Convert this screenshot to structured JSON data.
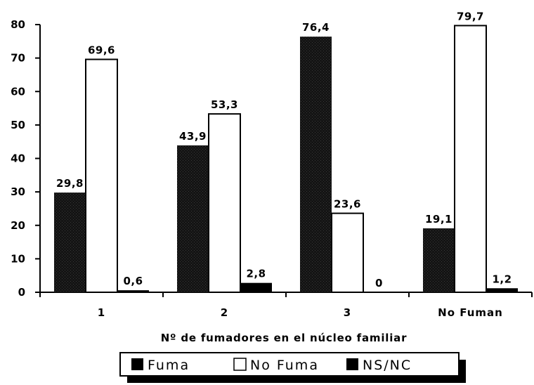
{
  "chart_data": {
    "type": "bar",
    "categories": [
      "1",
      "2",
      "3",
      "No Fuman"
    ],
    "series": [
      {
        "name": "Fuma",
        "values": [
          29.8,
          43.9,
          76.4,
          19.1
        ],
        "labels": [
          "29,8",
          "43,9",
          "76,4",
          "19,1"
        ],
        "color": "#1a1a1a"
      },
      {
        "name": "No Fuma",
        "values": [
          69.6,
          53.3,
          23.6,
          79.7
        ],
        "labels": [
          "69,6",
          "53,3",
          "23,6",
          "79,7"
        ],
        "color": "#ffffff"
      },
      {
        "name": "NS/NC",
        "values": [
          0.6,
          2.8,
          0,
          1.2
        ],
        "labels": [
          "0,6",
          "2,8",
          "0",
          "1,2"
        ],
        "color": "#000000"
      }
    ],
    "title": "",
    "xlabel": "Nº de fumadores en el núcleo familiar",
    "ylabel": "",
    "ylim": [
      0,
      80
    ],
    "yticks": [
      "0",
      "10",
      "20",
      "30",
      "40",
      "50",
      "60",
      "70",
      "80"
    ],
    "grid": false,
    "legend": "bottom"
  }
}
